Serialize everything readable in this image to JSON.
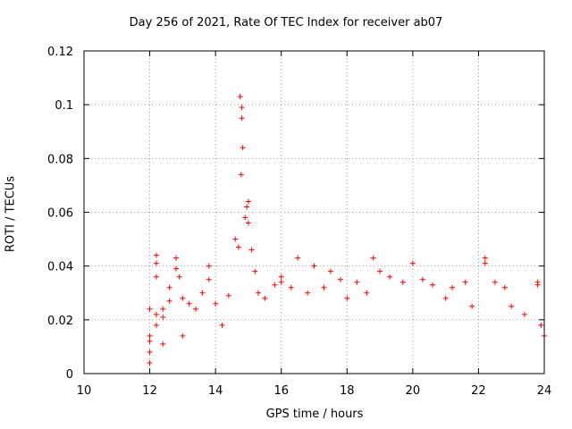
{
  "chart_data": {
    "type": "scatter",
    "title": "Day 256 of 2021, Rate Of TEC Index for receiver ab07",
    "xlabel": "GPS time / hours",
    "ylabel": "ROTI / TECUs",
    "xlim": [
      10,
      24
    ],
    "ylim": [
      0,
      0.12
    ],
    "x_ticks": [
      "10",
      "12",
      "14",
      "16",
      "18",
      "20",
      "22",
      "24"
    ],
    "y_ticks": [
      "0",
      "0.02",
      "0.04",
      "0.06",
      "0.08",
      "0.1",
      "0.12"
    ],
    "grid": true,
    "marker": "+",
    "color": "#ff0000",
    "series": [
      {
        "name": "ROTI",
        "points": [
          [
            12.0,
            0.014
          ],
          [
            12.0,
            0.004
          ],
          [
            12.0,
            0.008
          ],
          [
            12.0,
            0.024
          ],
          [
            12.0,
            0.012
          ],
          [
            12.2,
            0.044
          ],
          [
            12.2,
            0.041
          ],
          [
            12.2,
            0.036
          ],
          [
            12.2,
            0.022
          ],
          [
            12.2,
            0.018
          ],
          [
            12.4,
            0.024
          ],
          [
            12.4,
            0.021
          ],
          [
            12.4,
            0.011
          ],
          [
            12.6,
            0.032
          ],
          [
            12.6,
            0.027
          ],
          [
            12.8,
            0.043
          ],
          [
            12.8,
            0.039
          ],
          [
            12.9,
            0.036
          ],
          [
            13.0,
            0.028
          ],
          [
            13.0,
            0.014
          ],
          [
            13.2,
            0.026
          ],
          [
            13.4,
            0.024
          ],
          [
            13.6,
            0.03
          ],
          [
            13.8,
            0.04
          ],
          [
            13.8,
            0.035
          ],
          [
            14.0,
            0.026
          ],
          [
            14.2,
            0.018
          ],
          [
            14.4,
            0.029
          ],
          [
            14.6,
            0.05
          ],
          [
            14.7,
            0.047
          ],
          [
            14.75,
            0.103
          ],
          [
            14.8,
            0.099
          ],
          [
            14.8,
            0.095
          ],
          [
            14.83,
            0.084
          ],
          [
            14.78,
            0.074
          ],
          [
            14.9,
            0.058
          ],
          [
            14.95,
            0.062
          ],
          [
            15.0,
            0.064
          ],
          [
            15.0,
            0.056
          ],
          [
            15.1,
            0.046
          ],
          [
            15.2,
            0.038
          ],
          [
            15.3,
            0.03
          ],
          [
            15.5,
            0.028
          ],
          [
            15.8,
            0.033
          ],
          [
            16.0,
            0.036
          ],
          [
            16.0,
            0.034
          ],
          [
            16.3,
            0.032
          ],
          [
            16.5,
            0.043
          ],
          [
            16.8,
            0.03
          ],
          [
            17.0,
            0.04
          ],
          [
            17.3,
            0.032
          ],
          [
            17.5,
            0.038
          ],
          [
            17.8,
            0.035
          ],
          [
            18.0,
            0.028
          ],
          [
            18.3,
            0.034
          ],
          [
            18.6,
            0.03
          ],
          [
            18.8,
            0.043
          ],
          [
            19.0,
            0.038
          ],
          [
            19.3,
            0.036
          ],
          [
            19.7,
            0.034
          ],
          [
            20.0,
            0.041
          ],
          [
            20.3,
            0.035
          ],
          [
            20.6,
            0.033
          ],
          [
            21.0,
            0.028
          ],
          [
            21.2,
            0.032
          ],
          [
            21.6,
            0.034
          ],
          [
            21.8,
            0.025
          ],
          [
            22.2,
            0.043
          ],
          [
            22.2,
            0.041
          ],
          [
            22.5,
            0.034
          ],
          [
            22.8,
            0.032
          ],
          [
            23.0,
            0.025
          ],
          [
            23.4,
            0.022
          ],
          [
            23.8,
            0.034
          ],
          [
            23.8,
            0.033
          ],
          [
            23.9,
            0.018
          ],
          [
            24.0,
            0.014
          ]
        ]
      }
    ]
  }
}
